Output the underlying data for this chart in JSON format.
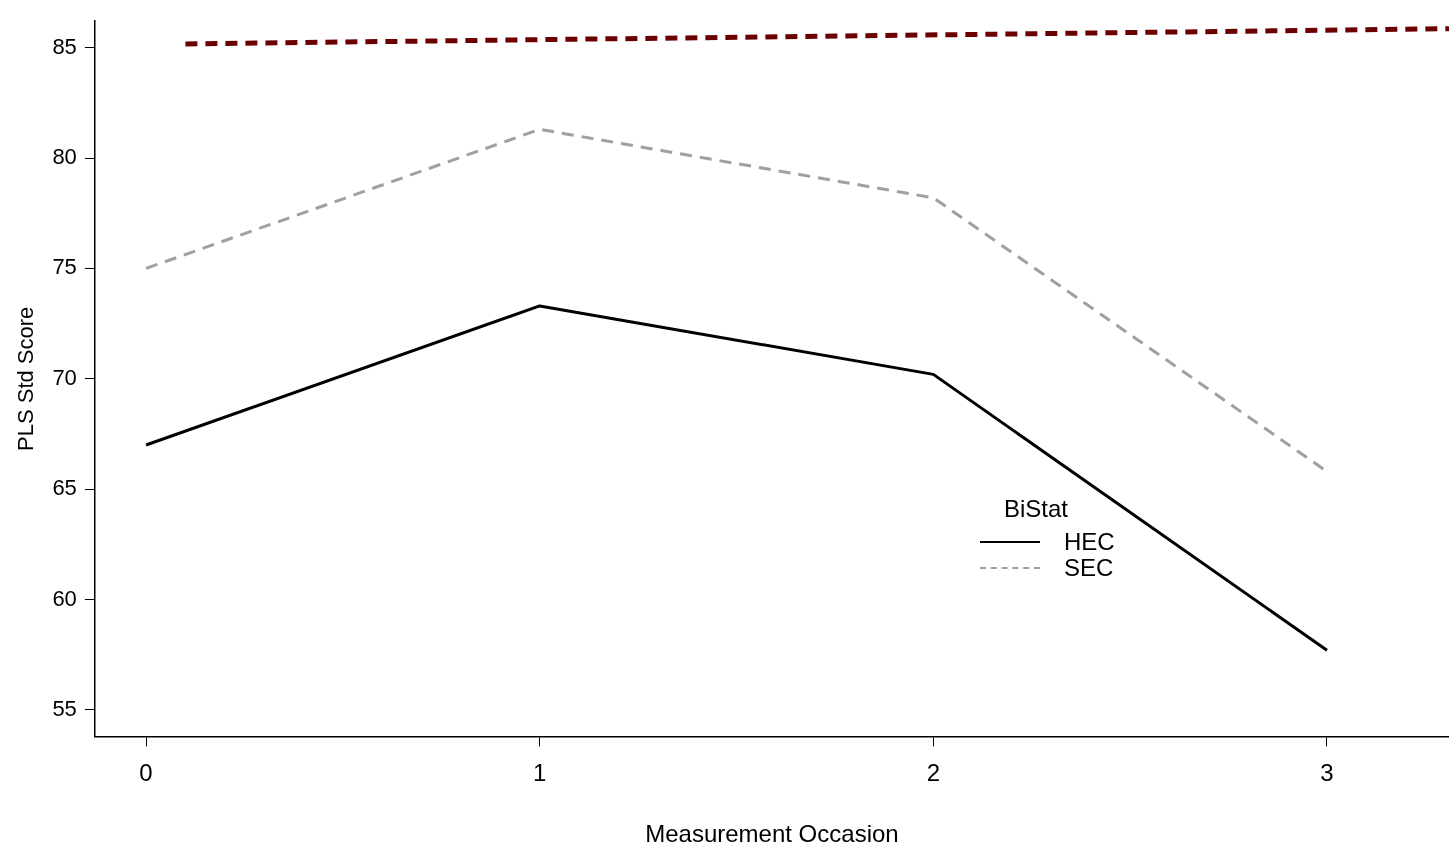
{
  "chart_data": {
    "type": "line",
    "xlabel": "Measurement Occasion",
    "ylabel": "PLS Std Score",
    "legend_title": "BiStat",
    "legend": "right",
    "grid": false,
    "marker": "none",
    "x": [
      0,
      1,
      2,
      3
    ],
    "xlim": [
      -0.13,
      3.31
    ],
    "xticks": [
      0,
      1,
      2,
      3
    ],
    "ylim": [
      53.8,
      86.2
    ],
    "yticks": [
      55,
      60,
      65,
      70,
      75,
      80,
      85
    ],
    "series": [
      {
        "name": "HEC",
        "color": "#000000",
        "line_style": "solid",
        "values": [
          67.0,
          73.3,
          70.2,
          57.7
        ]
      },
      {
        "name": "SEC",
        "color": "#a0a0a0",
        "line_style": "dashed",
        "values": [
          75.0,
          81.3,
          78.2,
          65.8
        ]
      },
      {
        "color": "#6b0000",
        "line_style": "dashed",
        "x": [
          0.1,
          3.31
        ],
        "values": [
          85.17,
          85.86
        ]
      }
    ]
  }
}
